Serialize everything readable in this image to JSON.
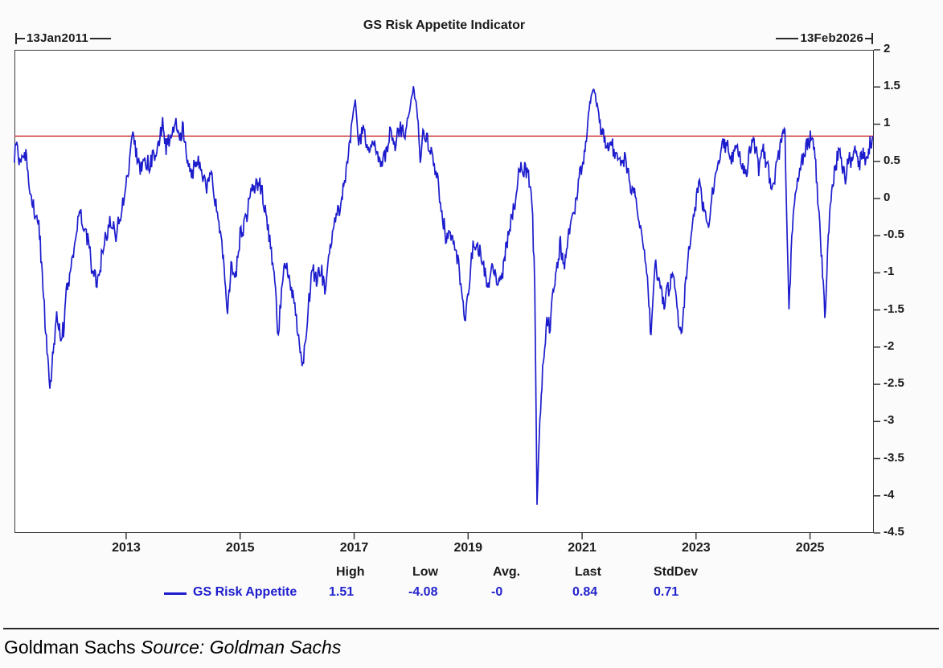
{
  "title": "GS Risk Appetite Indicator",
  "date_range": {
    "start": "13Jan2011",
    "end": "13Feb2026"
  },
  "colors": {
    "series": "#1c1ccd",
    "reference_line": "#cc3333",
    "axis": "#3a3a3a",
    "stat_value": "#2323cc",
    "text": "#1a1a1a"
  },
  "stats": {
    "legend_label": "GS Risk Appetite",
    "headers": [
      "High",
      "Low",
      "Avg.",
      "Last",
      "StdDev"
    ],
    "values": [
      "1.51",
      "-4.08",
      "-0",
      "0.84",
      "0.71"
    ]
  },
  "footer": {
    "brand": "Goldman Sachs",
    "source_label": "Source:",
    "source_value": "Goldman Sachs"
  },
  "chart_data": {
    "type": "line",
    "title": "GS Risk Appetite Indicator",
    "xlabel": "",
    "ylabel": "",
    "x_range": [
      2011.04,
      2026.12
    ],
    "y_range": [
      -4.5,
      2
    ],
    "x_ticks": [
      2013,
      2015,
      2017,
      2019,
      2021,
      2023,
      2025
    ],
    "y_ticks": [
      2,
      1.5,
      1,
      0.5,
      0,
      -0.5,
      -1,
      -1.5,
      -2,
      -2.5,
      -3,
      -3.5,
      -4,
      -4.5
    ],
    "grid": false,
    "legend_position": "bottom",
    "reference_line": {
      "value": 0.84,
      "label": "Last"
    },
    "series": [
      {
        "name": "GS Risk Appetite",
        "high": 1.51,
        "low": -4.08,
        "avg": -0.0,
        "last": 0.84,
        "stddev": 0.71,
        "anchors": [
          [
            2011.04,
            0.55
          ],
          [
            2011.08,
            0.8
          ],
          [
            2011.12,
            0.5
          ],
          [
            2011.18,
            0.62
          ],
          [
            2011.24,
            0.55
          ],
          [
            2011.3,
            0.12
          ],
          [
            2011.36,
            -0.1
          ],
          [
            2011.42,
            -0.2
          ],
          [
            2011.48,
            -0.45
          ],
          [
            2011.54,
            -1.2
          ],
          [
            2011.6,
            -1.9
          ],
          [
            2011.66,
            -2.55
          ],
          [
            2011.72,
            -2.1
          ],
          [
            2011.78,
            -1.5
          ],
          [
            2011.84,
            -1.85
          ],
          [
            2011.9,
            -1.75
          ],
          [
            2011.96,
            -1.2
          ],
          [
            2012.02,
            -1.0
          ],
          [
            2012.1,
            -0.55
          ],
          [
            2012.18,
            -0.2
          ],
          [
            2012.26,
            -0.35
          ],
          [
            2012.34,
            -0.6
          ],
          [
            2012.42,
            -1.05
          ],
          [
            2012.5,
            -1.1
          ],
          [
            2012.58,
            -0.75
          ],
          [
            2012.66,
            -0.45
          ],
          [
            2012.74,
            -0.28
          ],
          [
            2012.82,
            -0.5
          ],
          [
            2012.9,
            -0.2
          ],
          [
            2012.98,
            0.05
          ],
          [
            2013.06,
            0.5
          ],
          [
            2013.12,
            0.85
          ],
          [
            2013.18,
            0.6
          ],
          [
            2013.26,
            0.4
          ],
          [
            2013.34,
            0.5
          ],
          [
            2013.42,
            0.45
          ],
          [
            2013.5,
            0.62
          ],
          [
            2013.58,
            0.8
          ],
          [
            2013.64,
            1.0
          ],
          [
            2013.7,
            0.68
          ],
          [
            2013.78,
            0.85
          ],
          [
            2013.86,
            1.02
          ],
          [
            2013.94,
            0.85
          ],
          [
            2014.0,
            0.95
          ],
          [
            2014.08,
            0.55
          ],
          [
            2014.16,
            0.35
          ],
          [
            2014.24,
            0.55
          ],
          [
            2014.32,
            0.45
          ],
          [
            2014.4,
            0.12
          ],
          [
            2014.48,
            0.4
          ],
          [
            2014.56,
            0.0
          ],
          [
            2014.64,
            -0.35
          ],
          [
            2014.72,
            -0.9
          ],
          [
            2014.78,
            -1.6
          ],
          [
            2014.84,
            -0.85
          ],
          [
            2014.92,
            -1.05
          ],
          [
            2015.0,
            -0.5
          ],
          [
            2015.08,
            -0.35
          ],
          [
            2015.16,
            -0.05
          ],
          [
            2015.24,
            0.18
          ],
          [
            2015.32,
            0.22
          ],
          [
            2015.4,
            0.05
          ],
          [
            2015.48,
            -0.35
          ],
          [
            2015.56,
            -0.8
          ],
          [
            2015.62,
            -1.3
          ],
          [
            2015.67,
            -1.85
          ],
          [
            2015.74,
            -1.05
          ],
          [
            2015.82,
            -0.85
          ],
          [
            2015.9,
            -1.2
          ],
          [
            2015.96,
            -1.5
          ],
          [
            2016.04,
            -1.9
          ],
          [
            2016.1,
            -2.25
          ],
          [
            2016.18,
            -1.6
          ],
          [
            2016.26,
            -0.95
          ],
          [
            2016.34,
            -1.1
          ],
          [
            2016.42,
            -0.95
          ],
          [
            2016.5,
            -1.3
          ],
          [
            2016.58,
            -0.6
          ],
          [
            2016.66,
            -0.3
          ],
          [
            2016.74,
            -0.15
          ],
          [
            2016.82,
            0.15
          ],
          [
            2016.9,
            0.6
          ],
          [
            2016.96,
            1.0
          ],
          [
            2017.02,
            1.3
          ],
          [
            2017.08,
            0.75
          ],
          [
            2017.16,
            0.95
          ],
          [
            2017.24,
            0.55
          ],
          [
            2017.32,
            0.75
          ],
          [
            2017.4,
            0.65
          ],
          [
            2017.48,
            0.4
          ],
          [
            2017.56,
            0.65
          ],
          [
            2017.64,
            0.9
          ],
          [
            2017.72,
            0.72
          ],
          [
            2017.8,
            0.95
          ],
          [
            2017.88,
            0.85
          ],
          [
            2017.96,
            1.15
          ],
          [
            2018.04,
            1.51
          ],
          [
            2018.1,
            1.2
          ],
          [
            2018.16,
            0.5
          ],
          [
            2018.22,
            0.9
          ],
          [
            2018.3,
            0.75
          ],
          [
            2018.38,
            0.55
          ],
          [
            2018.46,
            0.3
          ],
          [
            2018.54,
            -0.2
          ],
          [
            2018.62,
            -0.55
          ],
          [
            2018.7,
            -0.45
          ],
          [
            2018.78,
            -0.65
          ],
          [
            2018.86,
            -1.05
          ],
          [
            2018.94,
            -1.65
          ],
          [
            2019.02,
            -1.1
          ],
          [
            2019.1,
            -0.55
          ],
          [
            2019.18,
            -0.65
          ],
          [
            2019.26,
            -0.85
          ],
          [
            2019.34,
            -1.2
          ],
          [
            2019.42,
            -0.9
          ],
          [
            2019.5,
            -1.05
          ],
          [
            2019.58,
            -1.15
          ],
          [
            2019.66,
            -0.7
          ],
          [
            2019.74,
            -0.35
          ],
          [
            2019.82,
            -0.1
          ],
          [
            2019.9,
            0.45
          ],
          [
            2019.98,
            0.4
          ],
          [
            2020.06,
            0.3
          ],
          [
            2020.12,
            0.0
          ],
          [
            2020.17,
            -1.2
          ],
          [
            2020.21,
            -4.1
          ],
          [
            2020.26,
            -3.0
          ],
          [
            2020.32,
            -2.2
          ],
          [
            2020.38,
            -1.6
          ],
          [
            2020.44,
            -1.75
          ],
          [
            2020.5,
            -1.2
          ],
          [
            2020.56,
            -0.9
          ],
          [
            2020.62,
            -0.6
          ],
          [
            2020.68,
            -0.95
          ],
          [
            2020.74,
            -0.55
          ],
          [
            2020.82,
            -0.35
          ],
          [
            2020.9,
            0.0
          ],
          [
            2020.96,
            0.35
          ],
          [
            2021.04,
            0.6
          ],
          [
            2021.1,
            1.05
          ],
          [
            2021.16,
            1.4
          ],
          [
            2021.22,
            1.45
          ],
          [
            2021.28,
            1.2
          ],
          [
            2021.34,
            0.9
          ],
          [
            2021.4,
            0.82
          ],
          [
            2021.46,
            0.6
          ],
          [
            2021.52,
            0.75
          ],
          [
            2021.6,
            0.5
          ],
          [
            2021.68,
            0.55
          ],
          [
            2021.76,
            0.5
          ],
          [
            2021.84,
            0.2
          ],
          [
            2021.92,
            0.05
          ],
          [
            2022.0,
            -0.3
          ],
          [
            2022.08,
            -0.7
          ],
          [
            2022.16,
            -1.2
          ],
          [
            2022.21,
            -1.95
          ],
          [
            2022.28,
            -0.9
          ],
          [
            2022.36,
            -1.15
          ],
          [
            2022.44,
            -1.4
          ],
          [
            2022.52,
            -1.2
          ],
          [
            2022.6,
            -1.05
          ],
          [
            2022.68,
            -1.55
          ],
          [
            2022.74,
            -1.9
          ],
          [
            2022.82,
            -1.1
          ],
          [
            2022.9,
            -0.5
          ],
          [
            2022.98,
            -0.15
          ],
          [
            2023.06,
            0.25
          ],
          [
            2023.14,
            -0.2
          ],
          [
            2023.22,
            -0.45
          ],
          [
            2023.3,
            0.15
          ],
          [
            2023.38,
            0.5
          ],
          [
            2023.46,
            0.7
          ],
          [
            2023.54,
            0.75
          ],
          [
            2023.62,
            0.5
          ],
          [
            2023.7,
            0.78
          ],
          [
            2023.78,
            0.6
          ],
          [
            2023.86,
            0.3
          ],
          [
            2023.94,
            0.6
          ],
          [
            2024.02,
            0.78
          ],
          [
            2024.1,
            0.4
          ],
          [
            2024.18,
            0.62
          ],
          [
            2024.26,
            0.4
          ],
          [
            2024.34,
            0.05
          ],
          [
            2024.42,
            0.45
          ],
          [
            2024.5,
            0.8
          ],
          [
            2024.56,
            0.85
          ],
          [
            2024.6,
            -0.6
          ],
          [
            2024.63,
            -1.55
          ],
          [
            2024.68,
            -0.5
          ],
          [
            2024.74,
            0.0
          ],
          [
            2024.82,
            0.35
          ],
          [
            2024.9,
            0.62
          ],
          [
            2024.98,
            0.78
          ],
          [
            2025.04,
            0.82
          ],
          [
            2025.1,
            0.45
          ],
          [
            2025.16,
            -0.3
          ],
          [
            2025.22,
            -1.0
          ],
          [
            2025.26,
            -1.6
          ],
          [
            2025.32,
            -0.5
          ],
          [
            2025.38,
            0.1
          ],
          [
            2025.44,
            0.4
          ],
          [
            2025.5,
            0.62
          ],
          [
            2025.56,
            0.45
          ],
          [
            2025.62,
            0.28
          ],
          [
            2025.68,
            0.55
          ],
          [
            2025.74,
            0.5
          ],
          [
            2025.8,
            0.62
          ],
          [
            2025.86,
            0.45
          ],
          [
            2025.92,
            0.6
          ],
          [
            2025.98,
            0.55
          ],
          [
            2026.04,
            0.7
          ],
          [
            2026.1,
            0.84
          ]
        ]
      }
    ]
  }
}
